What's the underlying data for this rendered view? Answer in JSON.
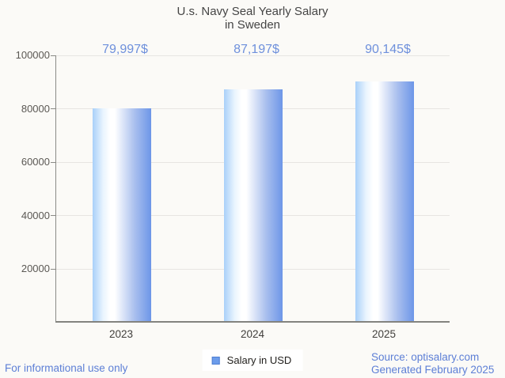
{
  "page": {
    "background": "#fbfaf7"
  },
  "title": {
    "line1": "U.s. Navy Seal Yearly Salary",
    "line2": "in Sweden"
  },
  "chart_data": {
    "type": "bar",
    "title": "U.s. Navy Seal Yearly Salary in Sweden",
    "categories": [
      "2023",
      "2024",
      "2025"
    ],
    "series": [
      {
        "name": "Salary in USD",
        "values": [
          79997,
          87197,
          90145
        ]
      }
    ],
    "value_labels": [
      "79,997$",
      "87,197$",
      "90,145$"
    ],
    "xlabel": "",
    "ylabel": "",
    "ylim": [
      0,
      100000
    ],
    "yticks": [
      20000,
      40000,
      60000,
      80000,
      100000
    ],
    "grid": true,
    "legend_position": "bottom",
    "colors": {
      "bar_gradient_left": "#a9d0f9",
      "bar_gradient_mid": "#ffffff",
      "bar_gradient_right": "#6d96e8",
      "value_label": "#6e90dc",
      "axis": "#8a8a86",
      "gridline": "#e7e5e2",
      "tick_label": "#5b5854"
    }
  },
  "legend": {
    "label": "Salary in USD",
    "swatch_fill": "#6c9ceb",
    "swatch_border": "#4e7fd3"
  },
  "footer": {
    "left": "For informational use only",
    "source": "Source: optisalary.com",
    "generated": "Generated February 2025"
  }
}
